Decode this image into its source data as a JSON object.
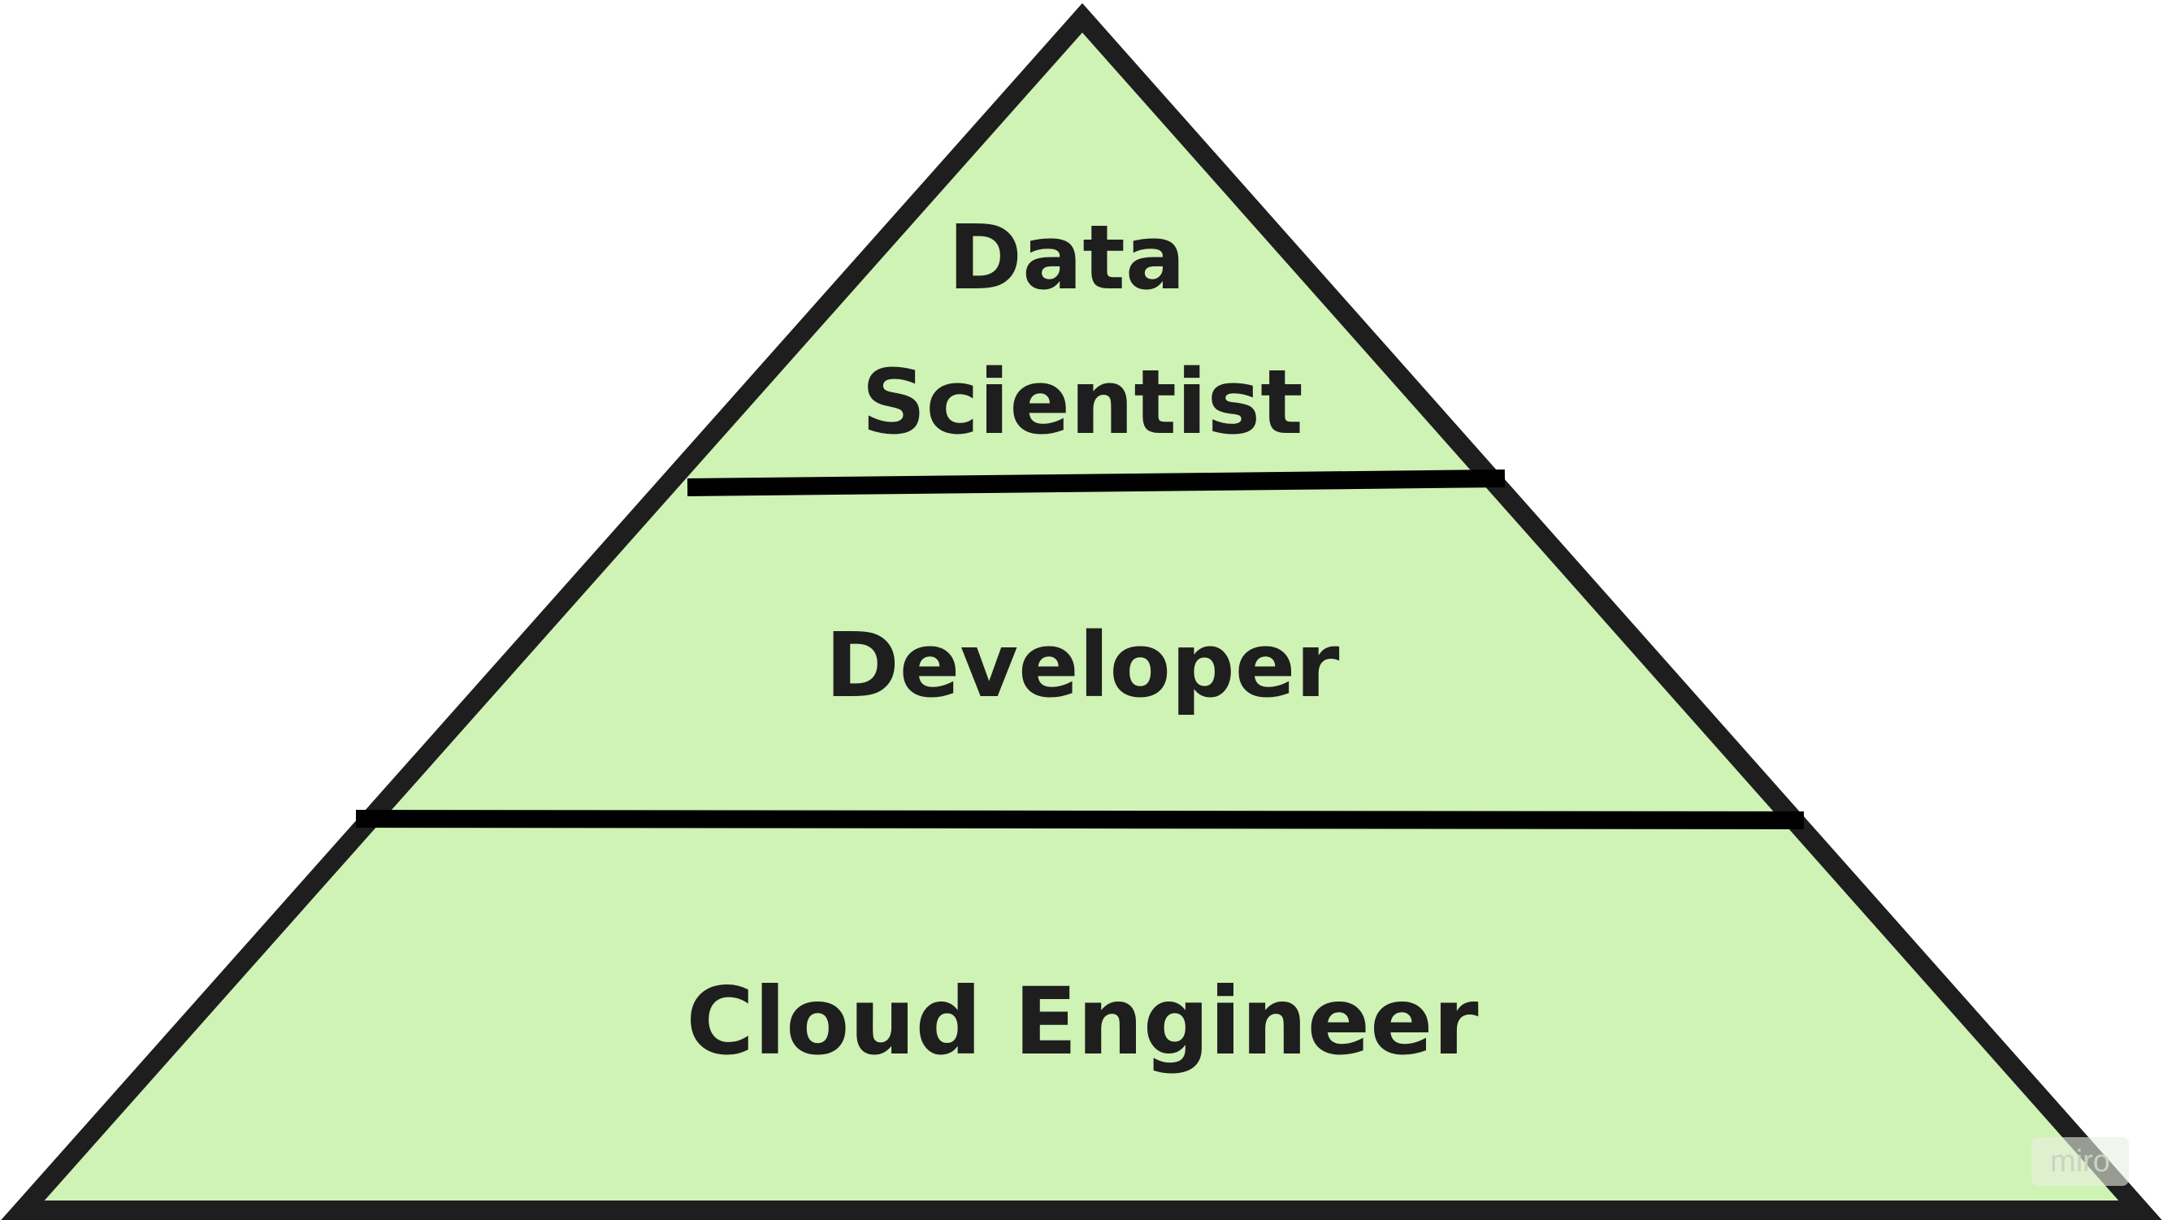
{
  "diagram": {
    "fill_color": "#cff2b5",
    "outline_color": "#1e1e1e",
    "divider_color": "#000000",
    "tiers": [
      {
        "id": "top",
        "lines": [
          "Data",
          "Scientist"
        ]
      },
      {
        "id": "middle",
        "lines": [
          "Developer"
        ]
      },
      {
        "id": "bottom",
        "lines": [
          "Cloud Engineer"
        ]
      }
    ]
  },
  "watermark": {
    "text": "miro"
  }
}
